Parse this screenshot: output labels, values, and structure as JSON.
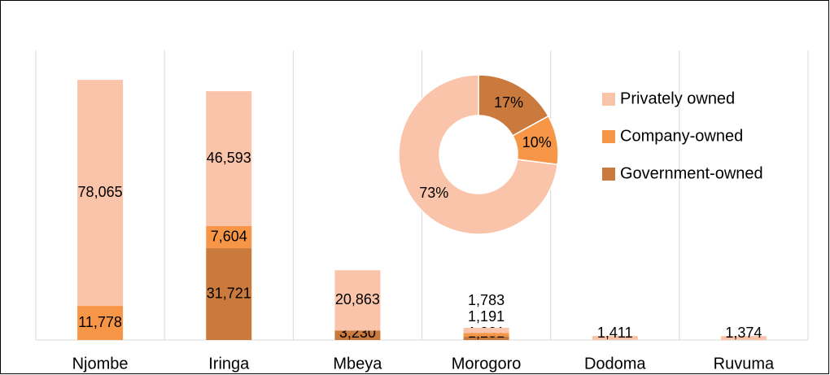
{
  "chart_data": [
    {
      "type": "bar",
      "categories": [
        "Njombe",
        "Iringa",
        "Mbeya",
        "Morogoro",
        "Dodoma",
        "Ruvuma"
      ],
      "series": [
        {
          "name": "Privately owned",
          "color": "#f9c4a9",
          "values": [
            78065,
            46593,
            20863,
            1783,
            1411,
            1374
          ],
          "value_labels": [
            "78,065",
            "46,593",
            "20,863",
            "1,783",
            "1,411",
            "1,374"
          ]
        },
        {
          "name": "Company-owned",
          "color": "#f79646",
          "values": [
            11778,
            7604,
            null,
            1191,
            null,
            null
          ],
          "value_labels": [
            "11,778",
            "7,604",
            null,
            "1,191",
            null,
            null
          ]
        },
        {
          "name": "Government-owned",
          "color": "#c97a3c",
          "values": [
            null,
            31721,
            3230,
            1231,
            null,
            null
          ],
          "value_labels": [
            null,
            "31,721",
            "3,230",
            "1,231",
            null,
            null
          ]
        }
      ],
      "ylim": [
        0,
        100000
      ],
      "grid": true,
      "legend": "top-right"
    },
    {
      "type": "pie",
      "values": [
        17,
        10,
        73
      ],
      "value_labels": [
        "17%",
        "10%",
        "73%"
      ],
      "colors": [
        "#c97a3c",
        "#f79646",
        "#f9c4a9"
      ],
      "hole": 0.49
    }
  ]
}
